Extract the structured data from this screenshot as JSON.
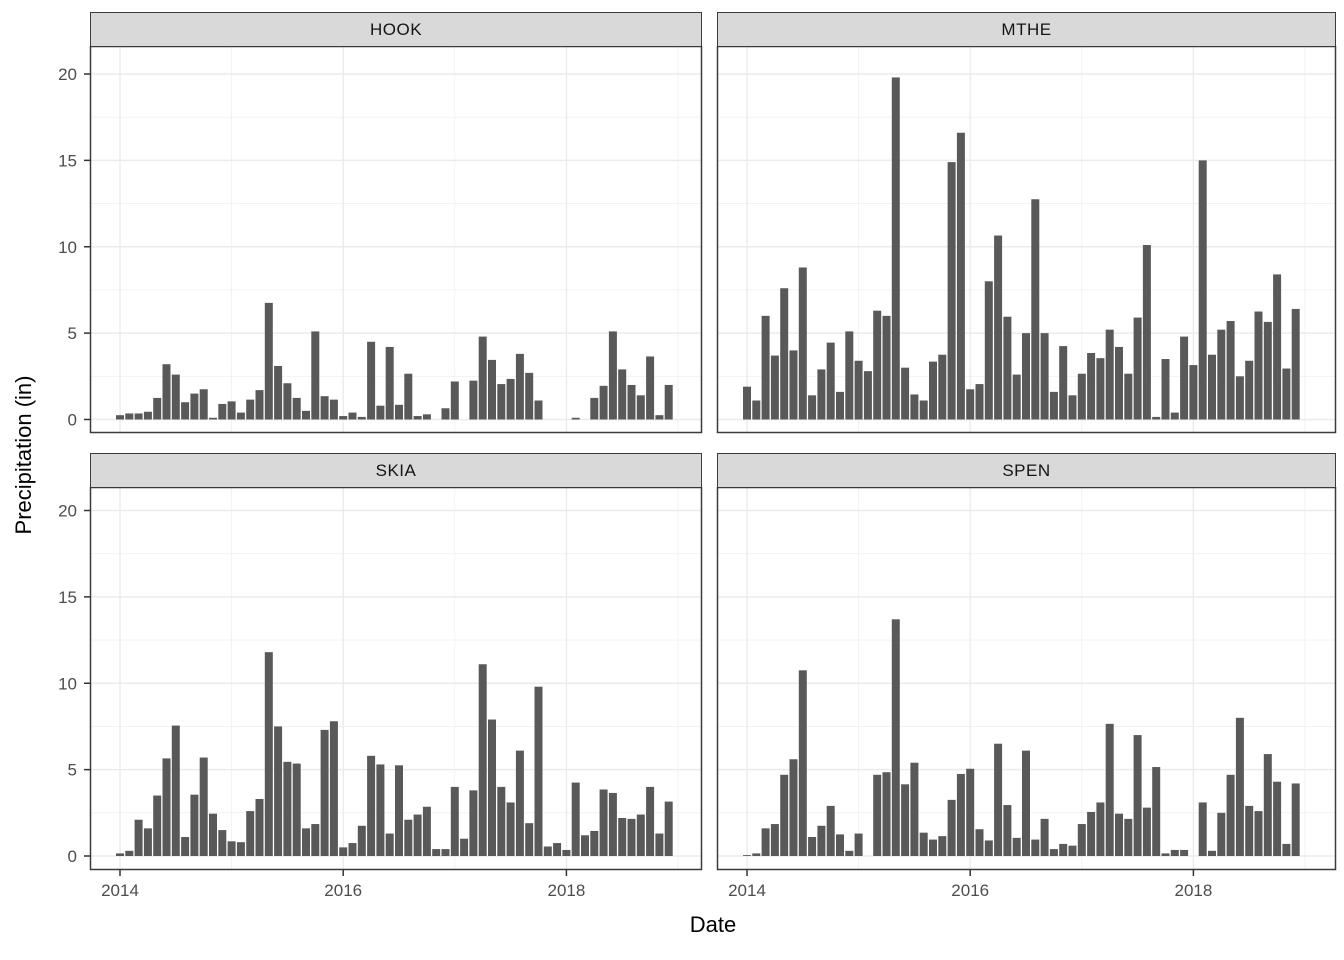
{
  "figure": {
    "y_axis_title": "Precipitation (in)",
    "x_axis_title": "Date"
  },
  "chart_data": {
    "type": "bar",
    "title": "",
    "xlabel": "Date",
    "ylabel": "Precipitation (in)",
    "layout": "2x2 faceted panels, shared axes",
    "legend_position": "none",
    "grid": "major and minor light-grey gridlines on white panels",
    "x_unit": "month",
    "x_domain_start": "2014-01",
    "x_domain_end": "2018-12",
    "x_tick_labels": [
      "2014",
      "2016",
      "2018"
    ],
    "x_tick_years": [
      2014,
      2016,
      2018
    ],
    "x_minor_years": [
      2015,
      2017,
      2019
    ],
    "y_tick_labels": [
      "0",
      "5",
      "10",
      "15",
      "20"
    ],
    "y_ticks": [
      0,
      5,
      10,
      15,
      20
    ],
    "y_minor_ticks": [
      2.5,
      7.5,
      12.5,
      17.5
    ],
    "ylim": [
      0,
      21.5
    ],
    "bar_color": "#595959",
    "facets": [
      {
        "label": "HOOK",
        "monthly_values": [
          0.25,
          0.35,
          0.35,
          0.45,
          1.25,
          3.2,
          2.6,
          1.0,
          1.5,
          1.75,
          0.1,
          0.9,
          1.05,
          0.4,
          1.15,
          1.7,
          6.75,
          3.1,
          2.1,
          1.25,
          0.5,
          5.1,
          1.35,
          1.15,
          0.2,
          0.4,
          0.15,
          4.5,
          0.8,
          4.2,
          0.85,
          2.65,
          0.2,
          0.3,
          0,
          0.65,
          2.2,
          0,
          2.25,
          4.8,
          3.45,
          2.05,
          2.35,
          3.8,
          2.7,
          1.1,
          0,
          0,
          0,
          0.1,
          0,
          1.25,
          1.95,
          5.1,
          2.9,
          2.0,
          1.4,
          3.65,
          0.25,
          2.0
        ]
      },
      {
        "label": "MTHE",
        "monthly_values": [
          1.9,
          1.1,
          6.0,
          3.7,
          7.6,
          4.0,
          8.8,
          1.4,
          2.9,
          4.45,
          1.6,
          5.1,
          3.4,
          2.8,
          6.3,
          6.0,
          19.8,
          3.0,
          1.45,
          1.1,
          3.35,
          3.75,
          14.9,
          16.6,
          1.75,
          2.05,
          8.0,
          10.65,
          5.95,
          2.6,
          5.0,
          12.75,
          5.0,
          1.6,
          4.25,
          1.4,
          2.65,
          3.85,
          3.55,
          5.2,
          4.2,
          2.65,
          5.9,
          10.1,
          0.15,
          3.5,
          0.4,
          4.8,
          3.15,
          15.0,
          3.75,
          5.2,
          5.7,
          2.5,
          3.4,
          6.25,
          5.65,
          8.4,
          2.95,
          6.4
        ]
      },
      {
        "label": "SKIA",
        "monthly_values": [
          0.15,
          0.3,
          2.1,
          1.6,
          3.5,
          5.65,
          7.55,
          1.1,
          3.55,
          5.7,
          2.45,
          1.5,
          0.85,
          0.8,
          2.6,
          3.3,
          11.8,
          7.5,
          5.45,
          5.35,
          1.6,
          1.85,
          7.3,
          7.8,
          0.5,
          0.75,
          1.75,
          5.8,
          5.3,
          1.3,
          5.25,
          2.1,
          2.4,
          2.85,
          0.4,
          0.4,
          4.0,
          1.0,
          3.8,
          11.1,
          7.9,
          4.0,
          3.1,
          6.1,
          1.9,
          9.8,
          0.55,
          0.75,
          0.35,
          4.25,
          1.2,
          1.45,
          3.85,
          3.65,
          2.2,
          2.15,
          2.4,
          4.0,
          1.3,
          3.15
        ]
      },
      {
        "label": "SPEN",
        "monthly_values": [
          0.05,
          0.15,
          1.6,
          1.85,
          4.7,
          5.6,
          10.75,
          1.1,
          1.75,
          2.9,
          1.25,
          0.3,
          1.3,
          0,
          4.7,
          4.85,
          13.7,
          4.15,
          5.4,
          1.35,
          0.95,
          1.15,
          3.25,
          4.75,
          5.05,
          1.55,
          0.9,
          6.5,
          2.95,
          1.05,
          6.1,
          0.95,
          2.15,
          0.4,
          0.7,
          0.6,
          1.85,
          2.55,
          3.1,
          7.65,
          2.45,
          2.15,
          7.0,
          2.8,
          5.15,
          0.15,
          0.35,
          0.35,
          0,
          3.1,
          0.3,
          2.5,
          4.7,
          8.0,
          2.9,
          2.6,
          5.9,
          4.3,
          0.7,
          4.2
        ]
      }
    ]
  },
  "style": {
    "background": "#FFFFFF",
    "panel_background": "#FFFFFF",
    "strip_background": "#D9D9D9",
    "strip_text_color": "#141414",
    "panel_border_color": "#3b3b3b",
    "grid_major_color": "#EBEBEB",
    "grid_minor_color": "#F1F1F1",
    "tick_mark_color": "#333333",
    "tick_label_color": "#4D4D4D",
    "axis_title_color": "#000000",
    "bar_color": "#595959"
  }
}
